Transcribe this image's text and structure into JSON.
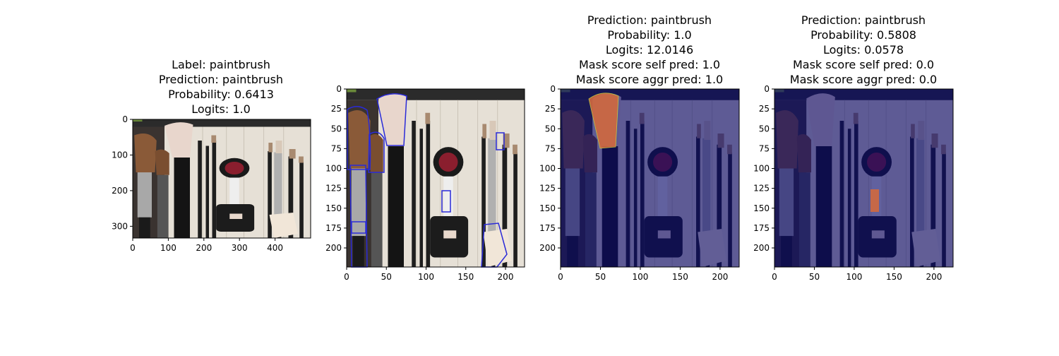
{
  "chart_data": [
    {
      "type": "image",
      "title_lines": [
        "Label: paintbrush",
        "Prediction: paintbrush",
        "Probability: 0.6413",
        "Logits: 1.0"
      ],
      "x_ticks": [
        0,
        100,
        200,
        300,
        400
      ],
      "y_ticks": [
        0,
        100,
        200,
        300
      ],
      "xlim": [
        0,
        500
      ],
      "ylim": [
        333,
        0
      ],
      "overlay": "none"
    },
    {
      "type": "image",
      "title_lines": [],
      "x_ticks": [
        0,
        50,
        100,
        150,
        200
      ],
      "y_ticks": [
        0,
        25,
        50,
        75,
        100,
        125,
        150,
        175,
        200
      ],
      "xlim": [
        0,
        224
      ],
      "ylim": [
        224,
        0
      ],
      "overlay": "contours"
    },
    {
      "type": "image",
      "title_lines": [
        "Prediction: paintbrush",
        "Probability: 1.0",
        "Logits: 12.0146",
        "Mask score self pred: 1.0",
        "Mask score aggr pred: 1.0"
      ],
      "x_ticks": [
        0,
        50,
        100,
        150,
        200
      ],
      "y_ticks": [
        0,
        25,
        50,
        75,
        100,
        125,
        150,
        175,
        200
      ],
      "xlim": [
        0,
        224
      ],
      "ylim": [
        224,
        0
      ],
      "overlay": "mask-fan-brush"
    },
    {
      "type": "image",
      "title_lines": [
        "Prediction: paintbrush",
        "Probability: 0.5808",
        "Logits: 0.0578",
        "Mask score self pred: 0.0",
        "Mask score aggr pred: 0.0"
      ],
      "x_ticks": [
        0,
        50,
        100,
        150,
        200
      ],
      "y_ticks": [
        0,
        25,
        50,
        75,
        100,
        125,
        150,
        175,
        200
      ],
      "xlim": [
        0,
        224
      ],
      "ylim": [
        224,
        0
      ],
      "overlay": "mask-small-patch"
    }
  ],
  "colors": {
    "fabric": "#e6e0d6",
    "leather": "#2b2b2b",
    "bristle_brown": "#8a5a38",
    "bristle_light": "#e8d6cc",
    "handle_black": "#141414",
    "handle_silver": "#a8a8a8",
    "compact_red": "#8a1e2e",
    "contour_blue": "#2a2ad8",
    "mask_tint": "#0a0a6e",
    "mask_red": "#d2693e"
  }
}
